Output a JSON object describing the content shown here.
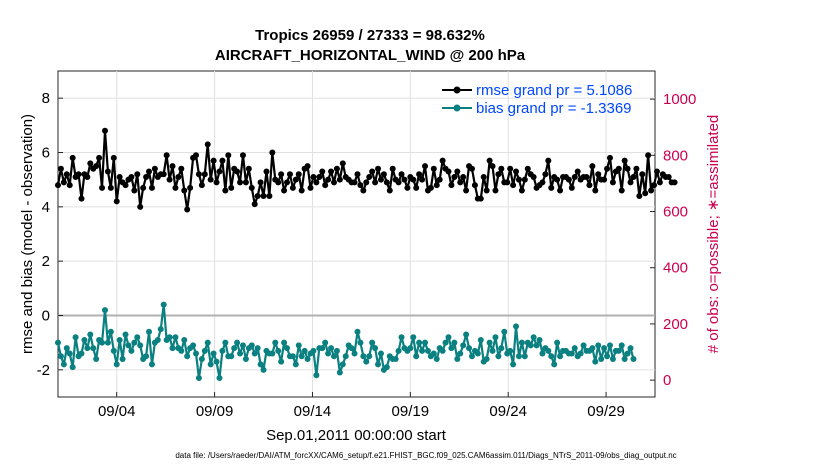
{
  "chart_data": {
    "type": "line",
    "title_line1": "Tropics 26959 / 27333 = 98.632%",
    "title_line2": "AIRCRAFT_HORIZONTAL_WIND @ 200 hPa",
    "xlabel": "Sep.01,2011 00:00:00 start",
    "ylabel_left": "rmse and bias (model - observation)",
    "ylabel_right": "# of obs: o=possible; ∗=assimilated",
    "footer": "data file: /Users/raeder/DAI/ATM_forcXX/CAM6_setup/f.e21.FHIST_BGC.f09_025.CAM6assim.011/Diags_NTrS_2011-09/obs_diag_output.nc",
    "x_range": [
      1.0,
      31.5
    ],
    "x_ticks": [
      {
        "x": 4,
        "label": "09/04"
      },
      {
        "x": 9,
        "label": "09/09"
      },
      {
        "x": 14,
        "label": "09/14"
      },
      {
        "x": 19,
        "label": "09/19"
      },
      {
        "x": 24,
        "label": "09/24"
      },
      {
        "x": 29,
        "label": "09/29"
      }
    ],
    "ylim_left": [
      -3,
      9
    ],
    "yticks_left": [
      "-2",
      "0",
      "2",
      "4",
      "6",
      "8"
    ],
    "ylim_right": [
      -60,
      1100
    ],
    "yticks_right": [
      "0",
      "200",
      "400",
      "600",
      "800",
      "1000"
    ],
    "zero_line": 0,
    "colors": {
      "rmse": "#000000",
      "bias": "#0b8080",
      "obs": "#cc0050",
      "zero": "#b0b0b0",
      "legend_text": "#0047ff",
      "grid": "#e0e0e0"
    },
    "series": [
      {
        "name": "rmse grand pr = 5.1086",
        "values": [
          4.8,
          5.4,
          4.9,
          5.2,
          4.8,
          5.8,
          5.1,
          5.2,
          4.3,
          5.2,
          5.1,
          5.6,
          5.4,
          5.5,
          5.8,
          4.7,
          6.8,
          5.3,
          4.7,
          5.8,
          4.2,
          5.1,
          4.9,
          4.8,
          5.0,
          5.1,
          4.6,
          5.2,
          4.0,
          4.7,
          5.1,
          5.3,
          4.7,
          5.4,
          5.1,
          5.2,
          5.2,
          5.9,
          5.0,
          5.5,
          4.7,
          5.1,
          5.4,
          4.6,
          3.9,
          4.7,
          5.8,
          5.9,
          5.2,
          4.8,
          5.2,
          6.3,
          5.0,
          5.7,
          4.9,
          5.3,
          5.7,
          4.6,
          5.9,
          4.7,
          5.4,
          5.3,
          4.9,
          5.9,
          4.9,
          5.4,
          4.7,
          4.1,
          4.4,
          4.9,
          4.4,
          5.3,
          4.4,
          6.0,
          5.0,
          4.9,
          5.2,
          4.6,
          4.9,
          5.2,
          4.7,
          5.0,
          5.2,
          4.6,
          5.4,
          5.5,
          4.7,
          5.1,
          4.9,
          5.1,
          5.3,
          4.8,
          5.0,
          5.3,
          4.9,
          5.4,
          5.0,
          5.6,
          5.1,
          5.0,
          4.9,
          4.9,
          5.2,
          4.8,
          4.6,
          4.9,
          5.1,
          5.3,
          4.9,
          5.4,
          5.0,
          5.2,
          4.9,
          4.6,
          5.4,
          5.0,
          4.9,
          5.2,
          5.0,
          4.7,
          5.1,
          5.0,
          4.7,
          5.2,
          5.0,
          5.5,
          4.6,
          4.7,
          5.4,
          4.8,
          5.0,
          5.7,
          5.4,
          5.3,
          4.8,
          5.1,
          5.3,
          4.9,
          5.1,
          4.6,
          5.5,
          5.4,
          4.8,
          4.3,
          4.3,
          5.1,
          4.6,
          5.7,
          5.5,
          4.6,
          5.2,
          5.4,
          4.9,
          4.9,
          5.4,
          4.8,
          5.3,
          5.0,
          4.6,
          5.0,
          5.4,
          5.2,
          5.1,
          4.7,
          4.8,
          4.9,
          5.2,
          5.7,
          4.7,
          5.1,
          5.0,
          4.6,
          5.1,
          5.1,
          5.0,
          4.7,
          5.1,
          5.3,
          5.0,
          5.1,
          5.1,
          4.8,
          5.5,
          4.6,
          5.2,
          5.0,
          5.0,
          5.4,
          5.8,
          4.9,
          5.3,
          5.4,
          4.6,
          5.7,
          5.4,
          4.9,
          5.1,
          5.4,
          4.4,
          5.2,
          4.5,
          5.9,
          4.6,
          4.8,
          5.3,
          4.9,
          5.2,
          5.1,
          5.1,
          4.9,
          4.9
        ]
      },
      {
        "name": "bias grand pr = -1.3369",
        "values": [
          -1.0,
          -1.5,
          -1.8,
          -1.2,
          -1.4,
          -1.9,
          -0.8,
          -1.5,
          -1.4,
          -0.9,
          -1.2,
          -0.7,
          -1.2,
          -1.6,
          -0.9,
          -1.0,
          0.2,
          -1.0,
          -0.6,
          -1.3,
          -1.8,
          -0.9,
          -1.6,
          -0.7,
          -1.1,
          -1.3,
          -1.0,
          -0.8,
          -1.1,
          -1.6,
          -1.5,
          -0.6,
          -1.8,
          -1.0,
          -0.9,
          -0.5,
          0.4,
          -0.9,
          -0.8,
          -1.2,
          -0.8,
          -1.2,
          -1.3,
          -0.9,
          -1.5,
          -1.2,
          -1.1,
          -1.4,
          -2.3,
          -1.6,
          -1.3,
          -1.0,
          -1.8,
          -1.4,
          -1.7,
          -2.3,
          -1.3,
          -1.0,
          -1.5,
          -1.5,
          -1.2,
          -1.0,
          -1.4,
          -1.1,
          -1.6,
          -1.2,
          -1.1,
          -1.4,
          -1.2,
          -1.8,
          -2.0,
          -1.3,
          -1.4,
          -1.4,
          -1.0,
          -1.3,
          -1.7,
          -1.0,
          -1.2,
          -1.5,
          -1.5,
          -1.8,
          -1.1,
          -1.5,
          -1.3,
          -1.6,
          -1.4,
          -1.3,
          -2.2,
          -1.2,
          -1.2,
          -1.0,
          -1.4,
          -1.2,
          -1.5,
          -1.3,
          -2.1,
          -1.8,
          -1.5,
          -1.1,
          -1.2,
          -1.4,
          -0.6,
          -1.0,
          -1.5,
          -1.7,
          -1.5,
          -1.0,
          -1.2,
          -1.8,
          -1.4,
          -2.0,
          -1.9,
          -1.5,
          -1.6,
          -1.6,
          -1.3,
          -0.8,
          -1.2,
          -1.3,
          -1.2,
          -0.8,
          -1.5,
          -1.0,
          -1.3,
          -1.0,
          -1.3,
          -1.5,
          -1.4,
          -1.6,
          -1.2,
          -1.3,
          -1.0,
          -0.8,
          -1.2,
          -1.0,
          -1.6,
          -1.4,
          -1.1,
          -0.7,
          -1.2,
          -1.5,
          -1.3,
          -1.4,
          -0.9,
          -1.7,
          -1.6,
          -1.0,
          -1.3,
          -0.8,
          -1.5,
          -1.2,
          -0.6,
          -1.4,
          -1.3,
          -1.8,
          -0.4,
          -1.5,
          -1.0,
          -1.5,
          -1.0,
          -1.1,
          -0.8,
          -1.1,
          -0.9,
          -1.4,
          -1.2,
          -1.3,
          -1.5,
          -1.8,
          -1.0,
          -1.5,
          -1.3,
          -1.3,
          -1.4,
          -1.4,
          -1.2,
          -1.5,
          -1.4,
          -1.1,
          -1.3,
          -1.3,
          -1.2,
          -1.7,
          -1.1,
          -1.6,
          -1.2,
          -1.5,
          -1.1,
          -1.6,
          -1.3,
          -1.3,
          -1.1,
          -1.6,
          -1.4,
          -1.2,
          -1.6
        ]
      }
    ],
    "obs_possible": [],
    "obs_assimilated": []
  }
}
